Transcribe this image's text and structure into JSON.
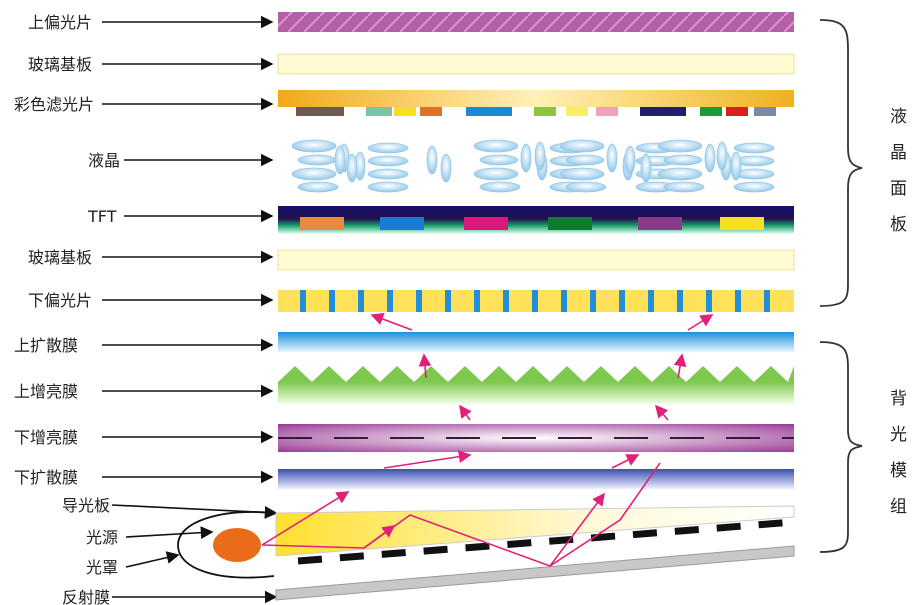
{
  "panel_group": {
    "label": [
      "液",
      "晶",
      "面",
      "板"
    ]
  },
  "backlight_group": {
    "label": [
      "背",
      "光",
      "模",
      "组"
    ]
  },
  "layers": [
    {
      "key": "upper_polarizer",
      "label": "上偏光片"
    },
    {
      "key": "glass_top",
      "label": "玻璃基板"
    },
    {
      "key": "color_filter",
      "label": "彩色滤光片"
    },
    {
      "key": "liquid_crystal",
      "label": "液晶"
    },
    {
      "key": "tft",
      "label": "TFT"
    },
    {
      "key": "glass_bottom",
      "label": "玻璃基板"
    },
    {
      "key": "lower_polarizer",
      "label": "下偏光片"
    },
    {
      "key": "upper_diffuser",
      "label": "上扩散膜"
    },
    {
      "key": "upper_brightness",
      "label": "上增亮膜"
    },
    {
      "key": "lower_brightness",
      "label": "下增亮膜"
    },
    {
      "key": "lower_diffuser",
      "label": "下扩散膜"
    },
    {
      "key": "light_guide",
      "label": "导光板"
    },
    {
      "key": "light_source",
      "label": "光源"
    },
    {
      "key": "lamp_cover",
      "label": "光罩"
    },
    {
      "key": "reflector",
      "label": "反射膜"
    }
  ],
  "colors": {
    "polarizer_top": "#b45fa8",
    "glass": "#fffbd2",
    "filter_band": "#f0b020",
    "crystal": "#9fd2ee",
    "tft_band": "#1a0f6e",
    "polarizer_bottom_base": "#ffe25a",
    "polarizer_bottom_stripe": "#1f8fd8",
    "diffuser": "#1c8fdc",
    "prism": "#7ec850",
    "brightness_low": "#9a3c96",
    "lower_diffuser": "#3a4fb0",
    "light_guide": "#ffe030",
    "lamp": "#ea6c1a",
    "reflector": "#c8c8c8",
    "light_ray": "#e0207a",
    "arrow": "#111111"
  }
}
